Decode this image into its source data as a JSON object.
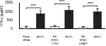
{
  "chart_data": {
    "type": "bar",
    "y_label": "IFN-γ (pg/ml)",
    "categories": [
      "Sham WGA",
      "pbs2+",
      "B6 STEC CTS2",
      "pbs2+",
      "B6 STEC DNMT",
      "pbs2+"
    ],
    "values": [
      120,
      900,
      150,
      1100,
      100,
      1000
    ],
    "errors": [
      30,
      150,
      40,
      180,
      25,
      160
    ],
    "colors": [
      "#ffffff",
      "#222222",
      "#ffffff",
      "#222222",
      "#ffffff",
      "#222222"
    ],
    "ylim": [
      0,
      1500
    ],
    "yticks": [
      0,
      500,
      1000,
      1500
    ],
    "grid": false,
    "annotations": [
      {
        "text": "****",
        "categories": [
          0,
          1
        ]
      },
      {
        "text": "****",
        "categories": [
          2,
          3
        ]
      },
      {
        "text": "****",
        "categories": [
          4,
          5
        ]
      }
    ]
  }
}
